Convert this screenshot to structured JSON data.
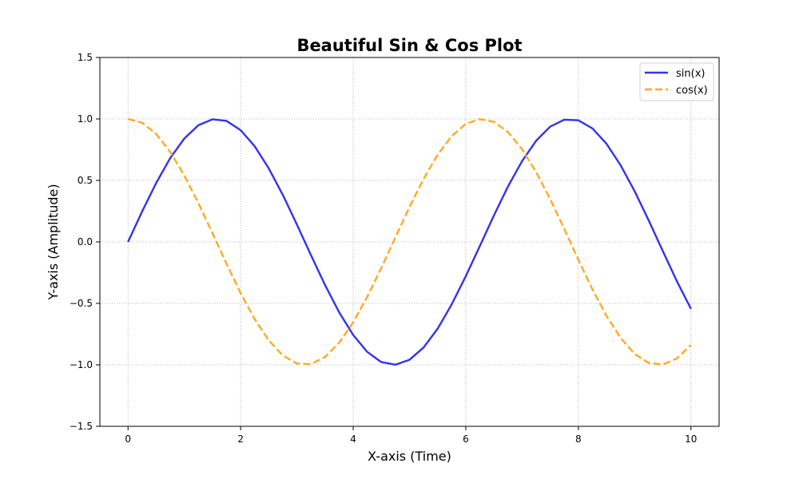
{
  "chart_data": {
    "type": "line",
    "title": "Beautiful Sin & Cos Plot",
    "xlabel": "X-axis (Time)",
    "ylabel": "Y-axis (Amplitude)",
    "xlim": [
      -0.5,
      10.5
    ],
    "ylim": [
      -1.5,
      1.5
    ],
    "xticks": [
      0,
      2,
      4,
      6,
      8,
      10
    ],
    "xtick_labels": [
      "0",
      "2",
      "4",
      "6",
      "8",
      "10"
    ],
    "yticks": [
      -1.5,
      -1.0,
      -0.5,
      0.0,
      0.5,
      1.0,
      1.5
    ],
    "ytick_labels": [
      "−1.5",
      "−1.0",
      "−0.5",
      "0.0",
      "0.5",
      "1.0",
      "1.5"
    ],
    "grid": true,
    "legend_position": "top-right",
    "series": [
      {
        "name": "sin(x)",
        "color": "#3333ee",
        "line_style": "solid",
        "x": [
          0,
          0.25,
          0.5,
          0.75,
          1,
          1.25,
          1.5,
          1.75,
          2,
          2.25,
          2.5,
          2.75,
          3,
          3.25,
          3.5,
          3.75,
          4,
          4.25,
          4.5,
          4.75,
          5,
          5.25,
          5.5,
          5.75,
          6,
          6.25,
          6.5,
          6.75,
          7,
          7.25,
          7.5,
          7.75,
          8,
          8.25,
          8.5,
          8.75,
          9,
          9.25,
          9.5,
          9.75,
          10
        ],
        "y": [
          0.0,
          0.247,
          0.479,
          0.682,
          0.841,
          0.949,
          0.997,
          0.984,
          0.909,
          0.778,
          0.598,
          0.382,
          0.141,
          -0.108,
          -0.351,
          -0.572,
          -0.757,
          -0.895,
          -0.978,
          -0.999,
          -0.959,
          -0.859,
          -0.706,
          -0.508,
          -0.279,
          -0.033,
          0.215,
          0.451,
          0.657,
          0.823,
          0.938,
          0.994,
          0.989,
          0.923,
          0.798,
          0.624,
          0.412,
          0.174,
          -0.075,
          -0.32,
          -0.544
        ]
      },
      {
        "name": "cos(x)",
        "color": "#ffaa22",
        "line_style": "dashed",
        "x": [
          0,
          0.25,
          0.5,
          0.75,
          1,
          1.25,
          1.5,
          1.75,
          2,
          2.25,
          2.5,
          2.75,
          3,
          3.25,
          3.5,
          3.75,
          4,
          4.25,
          4.5,
          4.75,
          5,
          5.25,
          5.5,
          5.75,
          6,
          6.25,
          6.5,
          6.75,
          7,
          7.25,
          7.5,
          7.75,
          8,
          8.25,
          8.5,
          8.75,
          9,
          9.25,
          9.5,
          9.75,
          10
        ],
        "y": [
          1.0,
          0.969,
          0.878,
          0.732,
          0.54,
          0.315,
          0.071,
          -0.178,
          -0.416,
          -0.628,
          -0.801,
          -0.924,
          -0.99,
          -0.994,
          -0.936,
          -0.82,
          -0.654,
          -0.446,
          -0.211,
          0.037,
          0.284,
          0.512,
          0.709,
          0.861,
          0.96,
          0.999,
          0.977,
          0.893,
          0.754,
          0.568,
          0.347,
          0.105,
          -0.146,
          -0.386,
          -0.602,
          -0.781,
          -0.911,
          -0.985,
          -0.997,
          -0.948,
          -0.839
        ]
      }
    ]
  }
}
